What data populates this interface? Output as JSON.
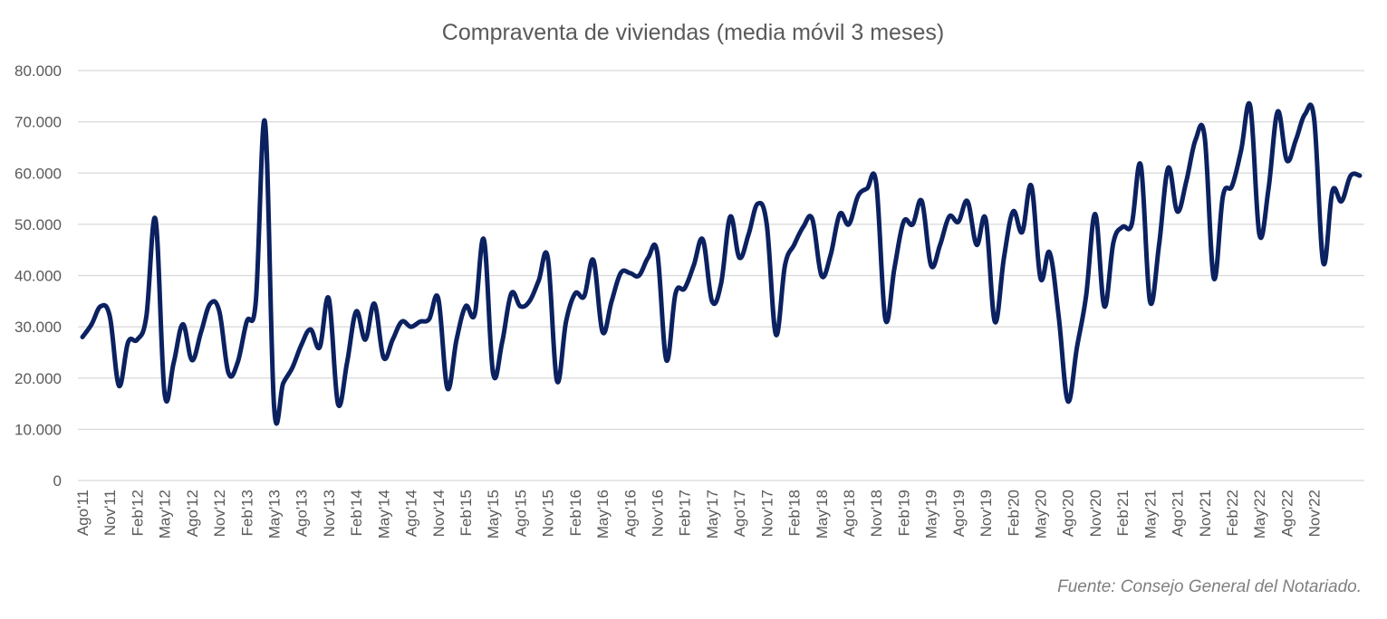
{
  "chart_data": {
    "type": "line",
    "title": "Compraventa de viviendas (media móvil 3 meses)",
    "source": "Fuente: Consejo General del Notariado.",
    "color": "#0b2160",
    "ylim": [
      0,
      80000
    ],
    "y_ticks": [
      "0",
      "10.000",
      "20.000",
      "30.000",
      "40.000",
      "50.000",
      "60.000",
      "70.000",
      "80.000"
    ],
    "grid": true,
    "legend": "none",
    "x_tick_labels": [
      "Ago'11",
      "Nov'11",
      "Feb'12",
      "May'12",
      "Ago'12",
      "Nov'12",
      "Feb'13",
      "May'13",
      "Ago'13",
      "Nov'13",
      "Feb'14",
      "May'14",
      "Ago'14",
      "Nov'14",
      "Feb'15",
      "May'15",
      "Ago'15",
      "Nov'15",
      "Feb'16",
      "May'16",
      "Ago'16",
      "Nov'16",
      "Feb'17",
      "May'17",
      "Ago'17",
      "Nov'17",
      "Feb'18",
      "May'18",
      "Ago'18",
      "Nov'18",
      "Feb'19",
      "May'19",
      "Ago'19",
      "Nov'19",
      "Feb'20",
      "May'20",
      "Ago'20",
      "Nov'20",
      "Feb'21",
      "May'21",
      "Ago'21",
      "Nov'21",
      "Feb'22",
      "May'22",
      "Ago'22",
      "Nov'22"
    ],
    "first_month": "2011-08",
    "series": [
      {
        "values": [
          28000,
          30500,
          34000,
          32000,
          18500,
          27000,
          27500,
          32000,
          51000,
          17000,
          23000,
          30500,
          23500,
          29000,
          34500,
          33000,
          21000,
          23000,
          31000,
          35000,
          70000,
          14500,
          19000,
          22000,
          26500,
          29500,
          26000,
          35500,
          15000,
          23000,
          33000,
          27500,
          34500,
          24000,
          27500,
          31000,
          30000,
          31000,
          31500,
          35500,
          18000,
          27500,
          34000,
          32500,
          47000,
          21000,
          27000,
          36500,
          34000,
          35000,
          39000,
          43500,
          19500,
          31000,
          36500,
          36000,
          43000,
          29000,
          35000,
          40500,
          40500,
          40000,
          43500,
          44500,
          23500,
          36500,
          37500,
          42000,
          47000,
          35000,
          38500,
          51500,
          43500,
          48000,
          54000,
          50000,
          28500,
          42000,
          46000,
          49500,
          51000,
          40000,
          44000,
          52000,
          50000,
          55500,
          57000,
          58000,
          31500,
          41500,
          50500,
          50000,
          54500,
          42000,
          46000,
          51500,
          50500,
          54500,
          46000,
          51000,
          31000,
          43500,
          52500,
          48500,
          57500,
          39500,
          44500,
          32000,
          15500,
          26000,
          36000,
          52000,
          34000,
          46500,
          49500,
          50000,
          61500,
          35000,
          46000,
          61000,
          52500,
          58500,
          66500,
          67000,
          39500,
          55500,
          57500,
          64500,
          73000,
          48000,
          57000,
          72000,
          62500,
          66500,
          71500,
          70500,
          42500,
          56500,
          54500,
          59500,
          59500
        ]
      }
    ]
  }
}
